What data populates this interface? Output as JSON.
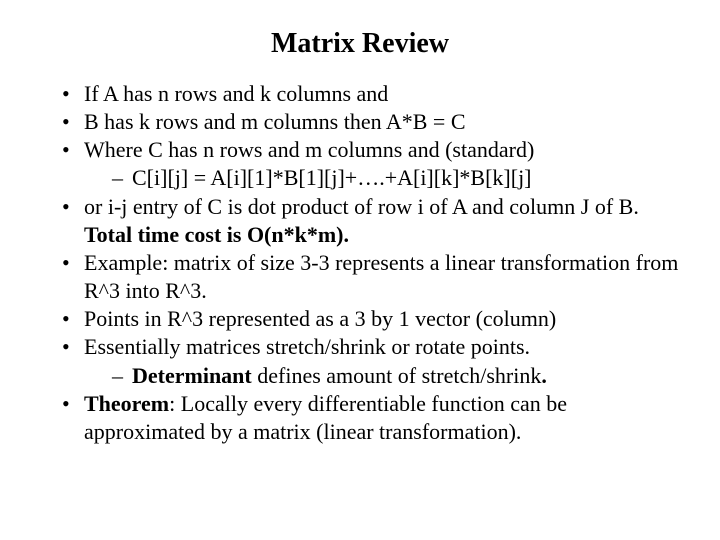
{
  "title": "Matrix Review",
  "b1": "If A has n rows and k columns and",
  "b2": "B has k rows and m columns then  A*B = C",
  "b3": "Where C has n rows and m columns and (standard)",
  "b3s1": "C[i][j] = A[i][1]*B[1][j]+….+A[i][k]*B[k][j]",
  "b4a": "or i-j entry of C is dot product of row i of A and column J of B.  ",
  "b4b": "Total time cost is O(n*k*m).",
  "b5": "Example: matrix of size 3-3 represents a linear transformation from R^3 into R^3.",
  "b6": "Points in R^3 represented as a 3 by 1 vector (column)",
  "b7": "Essentially matrices stretch/shrink or rotate points.",
  "b7s1a": "Determinant",
  "b7s1b": " defines amount of stretch/shrink",
  "b7s1c": ".",
  "b8a": "Theorem",
  "b8b": ": Locally every differentiable function can be approximated by a matrix (linear transformation)."
}
